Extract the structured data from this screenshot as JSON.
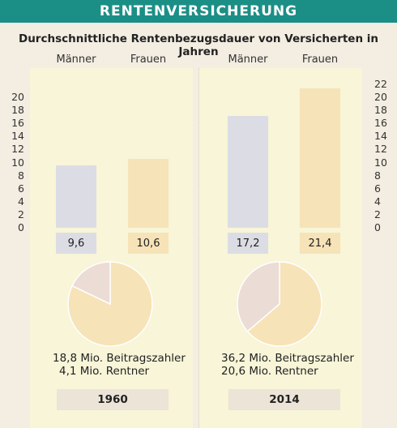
{
  "header": {
    "title": "RENTENVERSICHERUNG"
  },
  "chart_data": {
    "type": "bar",
    "title": "Durchschnittliche Rentenbezugsdauer von Versicherten in Jahren",
    "categories": [
      "Männer",
      "Frauen"
    ],
    "groups": [
      "1960",
      "2014"
    ],
    "series": [
      {
        "name": "1960",
        "values": [
          9.6,
          10.6
        ],
        "labels": [
          "9,6",
          "10,6"
        ]
      },
      {
        "name": "2014",
        "values": [
          17.2,
          21.4
        ],
        "labels": [
          "17,2",
          "21,4"
        ]
      }
    ],
    "left_axis": {
      "ticks": [
        "0",
        "2",
        "4",
        "6",
        "8",
        "10",
        "12",
        "14",
        "16",
        "18",
        "20"
      ],
      "ylim": [
        0,
        20
      ]
    },
    "right_axis": {
      "ticks": [
        "0",
        "2",
        "4",
        "6",
        "8",
        "10",
        "12",
        "14",
        "16",
        "18",
        "20",
        "22"
      ],
      "ylim": [
        0,
        22
      ]
    },
    "colors": {
      "maenner": "#dcdde4",
      "frauen": "#f7e3b8",
      "rentner_slice": "#ecdcd6",
      "beitrag_slice": "#f7e3b8",
      "header": "#1b8f86"
    },
    "pies": [
      {
        "year": "1960",
        "slices": [
          {
            "name": "Beitragszahler",
            "value": 18.8,
            "label": "18,8 Mio. Beitragszahler"
          },
          {
            "name": "Rentner",
            "value": 4.1,
            "label": "4,1 Mio. Rentner"
          }
        ]
      },
      {
        "year": "2014",
        "slices": [
          {
            "name": "Beitragszahler",
            "value": 36.2,
            "label": "36,2 Mio. Beitragszahler"
          },
          {
            "name": "Rentner",
            "value": 20.6,
            "label": "20,6 Mio. Rentner"
          }
        ]
      }
    ]
  }
}
